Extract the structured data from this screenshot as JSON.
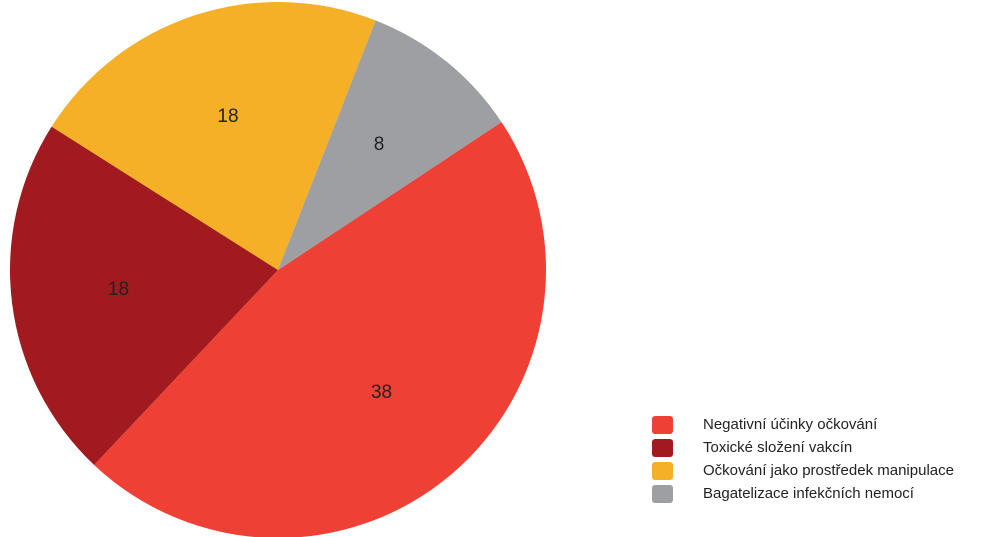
{
  "chart_data": {
    "type": "pie",
    "categories": [
      "Negativní účinky očkování",
      "Toxické složení vakcín",
      "Očkování jako prostředek manipulace",
      "Bagatelizace infekčních nemocí"
    ],
    "values": [
      38,
      18,
      18,
      8
    ],
    "colors": [
      "#ef4035",
      "#a01a1f",
      "#f5b027",
      "#9d9fa2"
    ],
    "data_labels": [
      "38",
      "18",
      "18",
      "8"
    ],
    "start_angle_deg": -33.5,
    "direction": "clockwise",
    "legend_position": "bottom-right"
  }
}
